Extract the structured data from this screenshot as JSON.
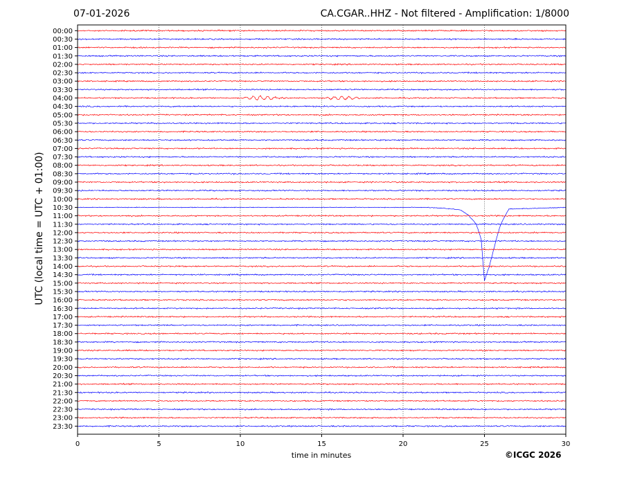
{
  "header": {
    "date": "07-01-2026",
    "title": "CA.CGAR..HHZ - Not filtered - Amplification: 1/8000"
  },
  "copyright": "©ICGC 2026",
  "chart_data": {
    "type": "line",
    "xlabel": "time in minutes",
    "ylabel": "UTC (local time = UTC + 01:00)",
    "xlim": [
      0,
      30
    ],
    "xticks": [
      0,
      5,
      10,
      15,
      20,
      25,
      30
    ],
    "grid": "vertical dotted at x ticks",
    "colors": {
      "even_rows": "#ff0000",
      "odd_rows": "#0000ff"
    },
    "rows": [
      "00:00",
      "00:30",
      "01:00",
      "01:30",
      "02:00",
      "02:30",
      "03:00",
      "03:30",
      "04:00",
      "04:30",
      "05:00",
      "05:30",
      "06:00",
      "06:30",
      "07:00",
      "07:30",
      "08:00",
      "08:30",
      "09:00",
      "09:30",
      "10:00",
      "10:30",
      "11:00",
      "11:30",
      "12:00",
      "12:30",
      "13:00",
      "13:30",
      "14:00",
      "14:30",
      "15:00",
      "15:30",
      "16:00",
      "16:30",
      "17:00",
      "17:30",
      "18:00",
      "18:30",
      "19:00",
      "19:30",
      "20:00",
      "20:30",
      "21:00",
      "21:30",
      "22:00",
      "22:30",
      "23:00",
      "23:30"
    ],
    "events": [
      {
        "row": "04:00",
        "note": "small oscillation bursts",
        "x_ranges": [
          [
            10,
            12.5
          ],
          [
            15,
            17.5
          ]
        ]
      },
      {
        "row": "10:30",
        "note": "large negative excursion",
        "x": [
          0,
          21.5,
          22.5,
          23.5,
          24,
          24.5,
          24.8,
          25,
          25.3,
          25.7,
          26,
          26.5,
          30
        ],
        "offset_rows": [
          0,
          0,
          0.1,
          0.3,
          0.9,
          2.0,
          3.8,
          8.7,
          7.0,
          4.0,
          2.0,
          0.2,
          0
        ]
      }
    ]
  }
}
